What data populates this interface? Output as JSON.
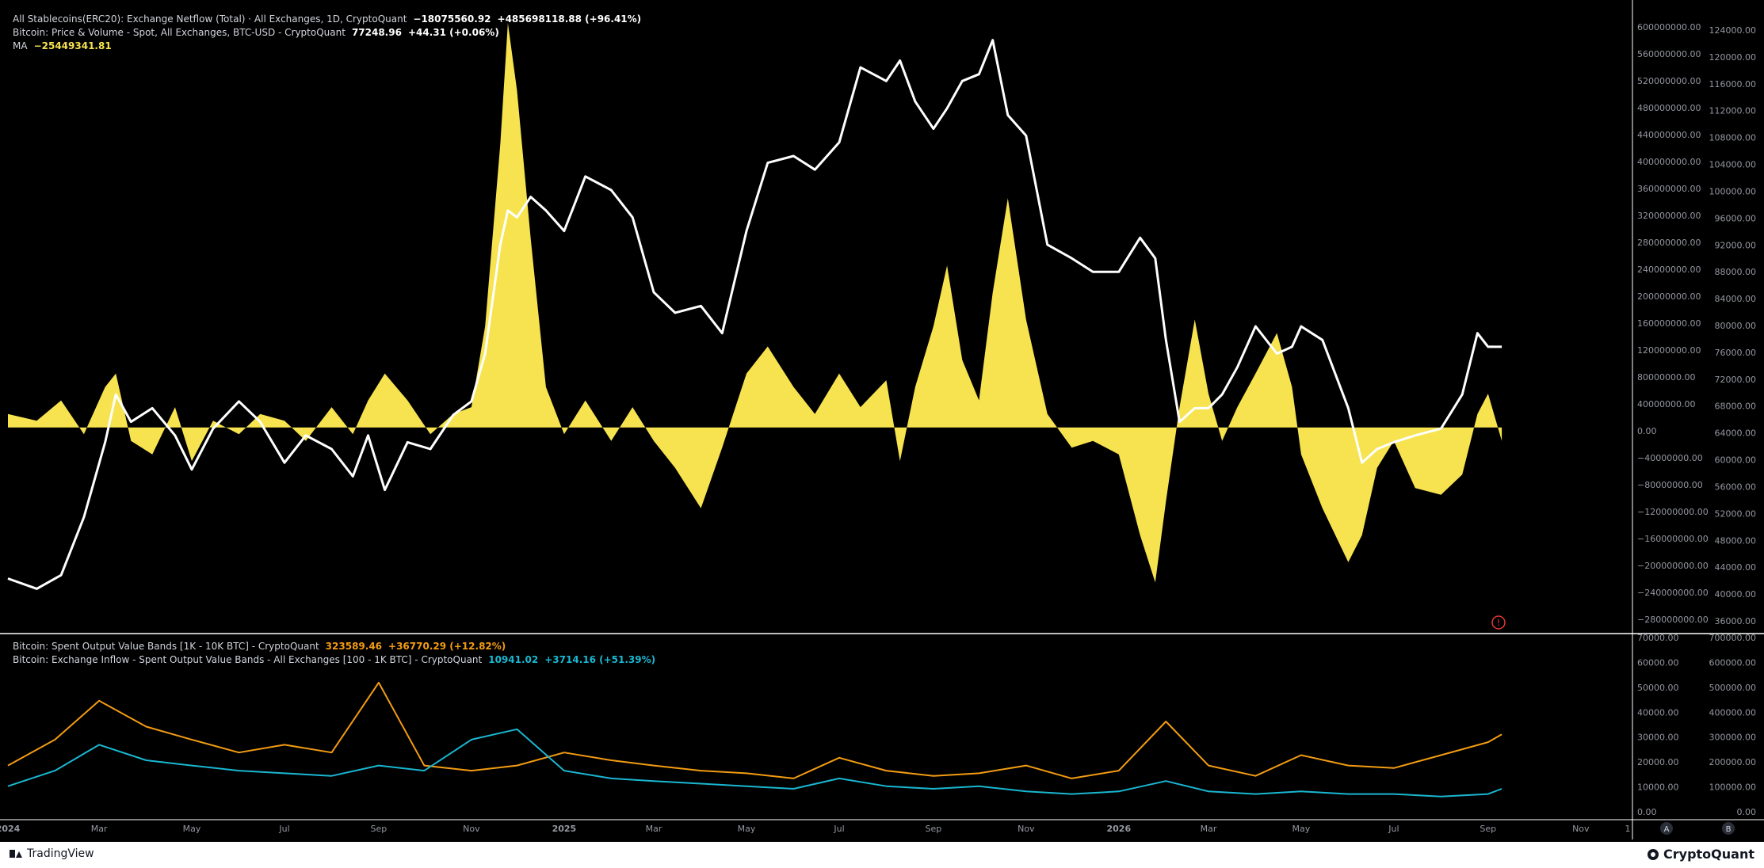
{
  "legend": {
    "netflow": {
      "label": "All Stablecoins(ERC20): Exchange Netflow (Total) · All Exchanges, 1D, CryptoQuant",
      "value": "−18075560.92",
      "change": "+485698118.88 (+96.41%)"
    },
    "btc": {
      "label": "Bitcoin: Price & Volume - Spot, All Exchanges, BTC-USD - CryptoQuant",
      "value": "77248.96",
      "change": "+44.31 (+0.06%)"
    },
    "ma": {
      "label": "MA",
      "value": "−25449341.81"
    },
    "sovb": {
      "label": "Bitcoin: Spent Output Value Bands [1K - 10K BTC] - CryptoQuant",
      "value": "323589.46",
      "change": "+36770.29 (+12.82%)"
    },
    "inflow": {
      "label": "Bitcoin: Exchange Inflow - Spent Output Value Bands - All Exchanges [100 - 1K BTC] - CryptoQuant",
      "value": "10941.02",
      "change": "+3714.16 (+51.39%)"
    }
  },
  "footer": {
    "tradingview": "TradingView",
    "cryptoquant": "CryptoQuant"
  },
  "time_scale": {
    "tz_marker": "1",
    "button_a": "A",
    "button_b": "B"
  },
  "alert_icon": "!",
  "colors": {
    "background": "#000000",
    "netflow": "#f7e34f",
    "btc": "#ffffff",
    "sovb": "#f39c12",
    "inflow": "#19b7d1",
    "axis_text": "#9598a1"
  },
  "chart_data": [
    {
      "type": "area",
      "title": "All Stablecoins(ERC20): Exchange Netflow (Total) · All Exchanges, 1D, CryptoQuant",
      "x_ticks": [
        "2024",
        "Mar",
        "May",
        "Jul",
        "Sep",
        "Nov",
        "2025",
        "Mar",
        "May",
        "Jul",
        "Sep",
        "Nov",
        "2026",
        "Mar",
        "May",
        "Jul",
        "Sep",
        "Nov"
      ],
      "left_axis_ticks": [
        "600000000.00",
        "560000000.00",
        "520000000.00",
        "480000000.00",
        "440000000.00",
        "400000000.00",
        "360000000.00",
        "320000000.00",
        "280000000.00",
        "240000000.00",
        "200000000.00",
        "160000000.00",
        "120000000.00",
        "80000000.00",
        "40000000.00",
        "0.00",
        "−40000000.00",
        "−80000000.00",
        "−120000000.00",
        "−160000000.00",
        "−200000000.00",
        "−240000000.00",
        "−280000000.00"
      ],
      "right_axis_ticks": [
        "124000.00",
        "120000.00",
        "116000.00",
        "112000.00",
        "108000.00",
        "104000.00",
        "100000.00",
        "96000.00",
        "92000.00",
        "88000.00",
        "84000.00",
        "80000.00",
        "76000.00",
        "72000.00",
        "68000.00",
        "64000.00",
        "60000.00",
        "56000.00",
        "52000.00",
        "48000.00",
        "44000.00",
        "40000.00",
        "36000.00"
      ],
      "netflow_ylim": [
        -300000000,
        620000000
      ],
      "price_ylim": [
        35500,
        126500
      ],
      "netflow_series": {
        "name": "All Stablecoins(ERC20): Exchange Netflow (Total)",
        "color": "#f7e34f",
        "x": [
          "2024-01-01",
          "2024-01-20",
          "2024-02-05",
          "2024-02-20",
          "2024-03-05",
          "2024-03-12",
          "2024-03-22",
          "2024-04-05",
          "2024-04-20",
          "2024-05-01",
          "2024-05-15",
          "2024-06-01",
          "2024-06-15",
          "2024-07-01",
          "2024-07-15",
          "2024-08-01",
          "2024-08-15",
          "2024-08-25",
          "2024-09-05",
          "2024-09-20",
          "2024-10-05",
          "2024-10-20",
          "2024-11-01",
          "2024-11-10",
          "2024-11-20",
          "2024-11-25",
          "2024-12-01",
          "2024-12-10",
          "2024-12-20",
          "2025-01-01",
          "2025-01-15",
          "2025-02-01",
          "2025-02-15",
          "2025-03-01",
          "2025-03-15",
          "2025-04-01",
          "2025-04-15",
          "2025-05-01",
          "2025-05-15",
          "2025-06-01",
          "2025-06-15",
          "2025-07-01",
          "2025-07-15",
          "2025-08-01",
          "2025-08-10",
          "2025-08-20",
          "2025-09-01",
          "2025-09-10",
          "2025-09-20",
          "2025-10-01",
          "2025-10-10",
          "2025-10-20",
          "2025-11-01",
          "2025-11-15",
          "2025-12-01",
          "2025-12-15",
          "2026-01-01",
          "2026-01-15",
          "2026-01-25",
          "2026-02-01",
          "2026-02-10",
          "2026-02-20",
          "2026-03-01",
          "2026-03-10",
          "2026-03-20",
          "2026-04-01",
          "2026-04-15",
          "2026-04-25",
          "2026-05-01",
          "2026-05-15",
          "2026-06-01",
          "2026-06-10",
          "2026-06-20",
          "2026-07-01",
          "2026-07-15",
          "2026-08-01",
          "2026-08-15",
          "2026-08-25",
          "2026-09-01",
          "2026-09-10"
        ],
        "values": [
          20000000,
          10000000,
          40000000,
          -10000000,
          60000000,
          80000000,
          -20000000,
          -40000000,
          30000000,
          -50000000,
          10000000,
          -10000000,
          20000000,
          10000000,
          -20000000,
          30000000,
          -10000000,
          40000000,
          80000000,
          40000000,
          -10000000,
          20000000,
          30000000,
          150000000,
          420000000,
          600000000,
          500000000,
          280000000,
          60000000,
          -10000000,
          40000000,
          -20000000,
          30000000,
          -20000000,
          -60000000,
          -120000000,
          -30000000,
          80000000,
          120000000,
          60000000,
          20000000,
          80000000,
          30000000,
          70000000,
          -50000000,
          60000000,
          150000000,
          240000000,
          100000000,
          40000000,
          200000000,
          340000000,
          160000000,
          20000000,
          -30000000,
          -20000000,
          -40000000,
          -160000000,
          -230000000,
          -110000000,
          30000000,
          160000000,
          50000000,
          -20000000,
          30000000,
          80000000,
          140000000,
          60000000,
          -40000000,
          -120000000,
          -200000000,
          -160000000,
          -60000000,
          -20000000,
          -90000000,
          -100000000,
          -70000000,
          20000000,
          50000000,
          -20000000
        ]
      },
      "price_series": {
        "name": "Bitcoin: Price & Volume - Spot, All Exchanges, BTC-USD",
        "color": "#ffffff",
        "x": [
          "2024-01-01",
          "2024-01-20",
          "2024-02-05",
          "2024-02-20",
          "2024-03-05",
          "2024-03-12",
          "2024-03-22",
          "2024-04-05",
          "2024-04-20",
          "2024-05-01",
          "2024-05-15",
          "2024-06-01",
          "2024-06-15",
          "2024-07-01",
          "2024-07-15",
          "2024-08-01",
          "2024-08-15",
          "2024-08-25",
          "2024-09-05",
          "2024-09-20",
          "2024-10-05",
          "2024-10-20",
          "2024-11-01",
          "2024-11-10",
          "2024-11-20",
          "2024-11-25",
          "2024-12-01",
          "2024-12-10",
          "2024-12-20",
          "2025-01-01",
          "2025-01-15",
          "2025-02-01",
          "2025-02-15",
          "2025-03-01",
          "2025-03-15",
          "2025-04-01",
          "2025-04-15",
          "2025-05-01",
          "2025-05-15",
          "2025-06-01",
          "2025-06-15",
          "2025-07-01",
          "2025-07-15",
          "2025-08-01",
          "2025-08-10",
          "2025-08-20",
          "2025-09-01",
          "2025-09-10",
          "2025-09-20",
          "2025-10-01",
          "2025-10-10",
          "2025-10-20",
          "2025-11-01",
          "2025-11-15",
          "2025-12-01",
          "2025-12-15",
          "2026-01-01",
          "2026-01-15",
          "2026-01-25",
          "2026-02-01",
          "2026-02-10",
          "2026-02-20",
          "2026-03-01",
          "2026-03-10",
          "2026-03-20",
          "2026-04-01",
          "2026-04-15",
          "2026-04-25",
          "2026-05-01",
          "2026-05-15",
          "2026-06-01",
          "2026-06-10",
          "2026-06-20",
          "2026-07-01",
          "2026-07-15",
          "2026-08-01",
          "2026-08-15",
          "2026-08-25",
          "2026-09-01",
          "2026-09-10"
        ],
        "values": [
          43000,
          41500,
          43500,
          52000,
          63000,
          70000,
          66000,
          68000,
          64000,
          59000,
          65000,
          69000,
          66000,
          60000,
          64000,
          62000,
          58000,
          64000,
          56000,
          63000,
          62000,
          67000,
          69000,
          76000,
          92000,
          97000,
          96000,
          99000,
          97000,
          94000,
          102000,
          100000,
          96000,
          85000,
          82000,
          83000,
          79000,
          94000,
          104000,
          105000,
          103000,
          107000,
          118000,
          116000,
          119000,
          113000,
          109000,
          112000,
          116000,
          117000,
          122000,
          111000,
          108000,
          92000,
          90000,
          88000,
          88000,
          93000,
          90000,
          78000,
          66000,
          68000,
          68000,
          70000,
          74000,
          80000,
          76000,
          77000,
          80000,
          78000,
          68000,
          60000,
          62000,
          63000,
          64000,
          65000,
          70000,
          79000,
          77000,
          77000
        ]
      }
    },
    {
      "type": "line",
      "title": "Bitcoin: Spent Output Value Bands [1K - 10K BTC] - CryptoQuant",
      "x_ticks": [
        "2024",
        "Mar",
        "May",
        "Jul",
        "Sep",
        "Nov",
        "2025",
        "Mar",
        "May",
        "Jul",
        "Sep",
        "Nov",
        "2026",
        "Mar",
        "May",
        "Jul",
        "Sep",
        "Nov"
      ],
      "left_axis_ticks": [
        "70000.00",
        "60000.00",
        "50000.00",
        "40000.00",
        "30000.00",
        "20000.00",
        "10000.00",
        "0.00"
      ],
      "right_axis_ticks": [
        "700000.00",
        "600000.00",
        "500000.00",
        "400000.00",
        "300000.00",
        "200000.00",
        "100000.00",
        "0.00"
      ],
      "sovb_ylim": [
        0,
        700000
      ],
      "inflow_ylim": [
        0,
        70000
      ],
      "series": [
        {
          "name": "Bitcoin: Spent Output Value Bands [1K - 10K BTC]",
          "color": "#f39c12",
          "x": [
            "2024-01-01",
            "2024-02-01",
            "2024-03-01",
            "2024-04-01",
            "2024-05-01",
            "2024-06-01",
            "2024-07-01",
            "2024-08-01",
            "2024-09-01",
            "2024-10-01",
            "2024-11-01",
            "2024-12-01",
            "2025-01-01",
            "2025-02-01",
            "2025-03-01",
            "2025-04-01",
            "2025-05-01",
            "2025-06-01",
            "2025-07-01",
            "2025-08-01",
            "2025-09-01",
            "2025-10-01",
            "2025-11-01",
            "2025-12-01",
            "2026-01-01",
            "2026-02-01",
            "2026-03-01",
            "2026-04-01",
            "2026-05-01",
            "2026-06-01",
            "2026-07-01",
            "2026-08-01",
            "2026-09-01",
            "2026-09-10"
          ],
          "values": [
            200000,
            300000,
            450000,
            350000,
            300000,
            250000,
            280000,
            250000,
            520000,
            200000,
            180000,
            200000,
            250000,
            220000,
            200000,
            180000,
            170000,
            150000,
            230000,
            180000,
            160000,
            170000,
            200000,
            150000,
            180000,
            370000,
            200000,
            160000,
            240000,
            200000,
            190000,
            240000,
            290000,
            320000
          ]
        },
        {
          "name": "Bitcoin: Exchange Inflow - Spent Output Value Bands - All Exchanges [100 - 1K BTC]",
          "color": "#19b7d1",
          "x": [
            "2024-01-01",
            "2024-02-01",
            "2024-03-01",
            "2024-04-01",
            "2024-05-01",
            "2024-06-01",
            "2024-07-01",
            "2024-08-01",
            "2024-09-01",
            "2024-10-01",
            "2024-11-01",
            "2024-12-01",
            "2025-01-01",
            "2025-02-01",
            "2025-03-01",
            "2025-04-01",
            "2025-05-01",
            "2025-06-01",
            "2025-07-01",
            "2025-08-01",
            "2025-09-01",
            "2025-10-01",
            "2025-11-01",
            "2025-12-01",
            "2026-01-01",
            "2026-02-01",
            "2026-03-01",
            "2026-04-01",
            "2026-05-01",
            "2026-06-01",
            "2026-07-01",
            "2026-08-01",
            "2026-09-01",
            "2026-09-10"
          ],
          "values": [
            12000,
            18000,
            28000,
            22000,
            20000,
            18000,
            17000,
            16000,
            20000,
            18000,
            30000,
            34000,
            18000,
            15000,
            14000,
            13000,
            12000,
            11000,
            15000,
            12000,
            11000,
            12000,
            10000,
            9000,
            10000,
            14000,
            10000,
            9000,
            10000,
            9000,
            9000,
            8000,
            9000,
            11000
          ]
        }
      ]
    }
  ]
}
